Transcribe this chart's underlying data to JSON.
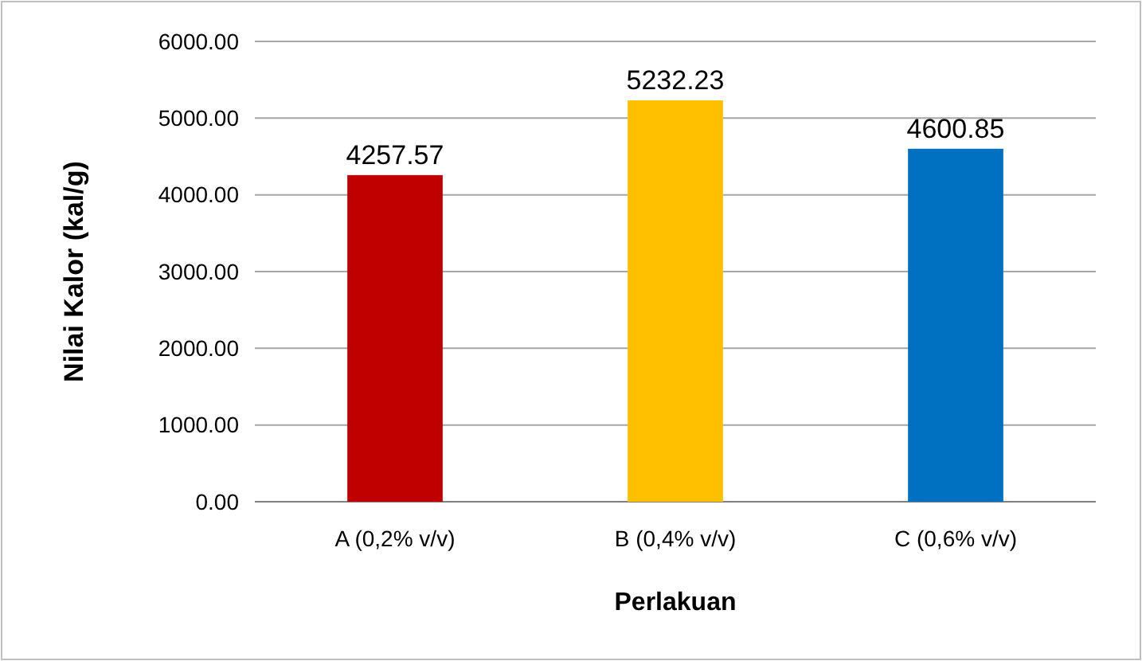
{
  "chart_data": {
    "type": "bar",
    "xlabel": "Perlakuan",
    "ylabel": "Nilai Kalor (kal/g)",
    "categories": [
      "A (0,2% v/v)",
      "B (0,4% v/v)",
      "C (0,6% v/v)"
    ],
    "values": [
      4257.57,
      5232.23,
      4600.85
    ],
    "colors": [
      "#c00000",
      "#ffc000",
      "#0070c0"
    ],
    "ylim": [
      0,
      6000
    ],
    "yticks": [
      {
        "value": 0,
        "label": "0.00"
      },
      {
        "value": 1000,
        "label": "1000.00"
      },
      {
        "value": 2000,
        "label": "2000.00"
      },
      {
        "value": 3000,
        "label": "3000.00"
      },
      {
        "value": 4000,
        "label": "4000.00"
      },
      {
        "value": 5000,
        "label": "5000.00"
      },
      {
        "value": 6000,
        "label": "6000.00"
      }
    ],
    "grid": "y",
    "data_labels": true
  }
}
